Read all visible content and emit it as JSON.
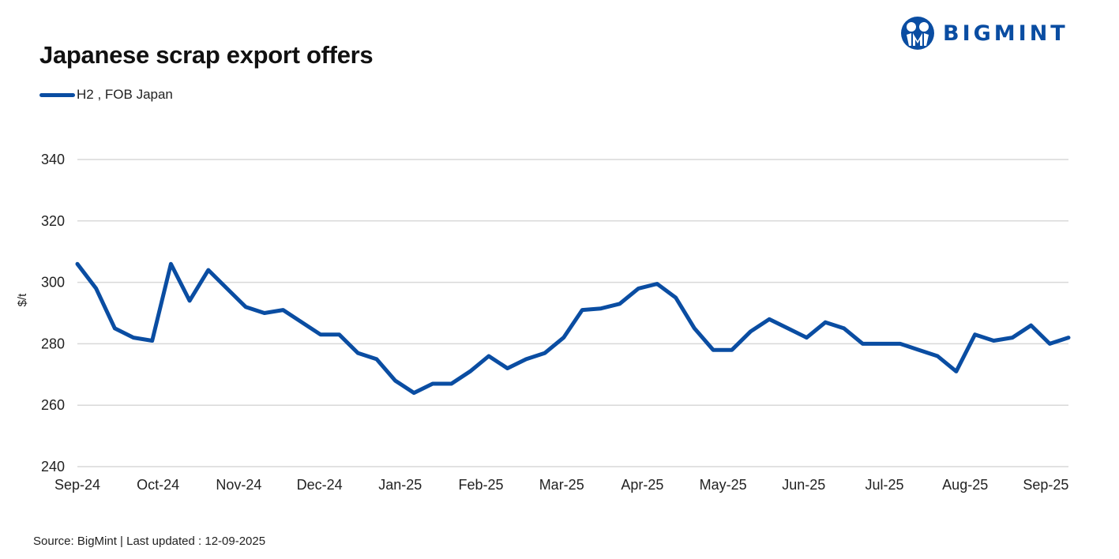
{
  "header": {
    "title": "Japanese scrap export offers",
    "logo_text": "BIGMINT",
    "logo_icon": "bigmint-people-icon"
  },
  "legend": {
    "items": [
      {
        "label": "H2 , FOB Japan",
        "color": "#0a4da2"
      }
    ]
  },
  "footer": {
    "text": "Source: BigMint  | Last updated : 12-09-2025"
  },
  "colors": {
    "line": "#0a4da2",
    "grid": "#d9d9d9",
    "brand": "#0a4da2"
  },
  "chart_data": {
    "type": "line",
    "title": "Japanese scrap export offers",
    "xlabel": "",
    "ylabel": "$/t",
    "ylim": [
      240,
      340
    ],
    "yticks": [
      240,
      260,
      280,
      300,
      320,
      340
    ],
    "grid": true,
    "legend_position": "top-left",
    "x_tick_labels": [
      "Sep-24",
      "Oct-24",
      "Nov-24",
      "Dec-24",
      "Jan-25",
      "Feb-25",
      "Mar-25",
      "Apr-25",
      "May-25",
      "Jun-25",
      "Jul-25",
      "Aug-25",
      "Sep-25"
    ],
    "series": [
      {
        "name": "H2 , FOB Japan",
        "color": "#0a4da2",
        "values": [
          306,
          298,
          285,
          282,
          281,
          306,
          294,
          304,
          298,
          292,
          290,
          291,
          287,
          283,
          283,
          277,
          275,
          268,
          264,
          267,
          267,
          271,
          276,
          272,
          275,
          277,
          282,
          291,
          291.5,
          293,
          298,
          299.5,
          295,
          285,
          278,
          278,
          284,
          288,
          285,
          282,
          287,
          285,
          280,
          280,
          280,
          278,
          276,
          271,
          283,
          281,
          282,
          286,
          280,
          282
        ]
      }
    ]
  }
}
